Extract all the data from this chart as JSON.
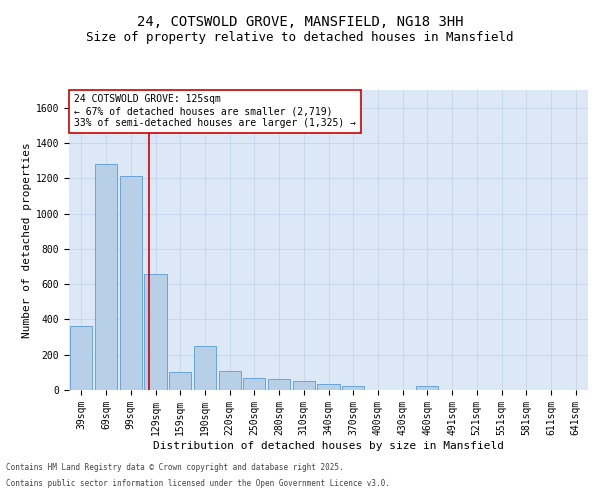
{
  "title": "24, COTSWOLD GROVE, MANSFIELD, NG18 3HH",
  "subtitle": "Size of property relative to detached houses in Mansfield",
  "xlabel": "Distribution of detached houses by size in Mansfield",
  "ylabel": "Number of detached properties",
  "footer_line1": "Contains HM Land Registry data © Crown copyright and database right 2025.",
  "footer_line2": "Contains public sector information licensed under the Open Government Licence v3.0.",
  "categories": [
    "39sqm",
    "69sqm",
    "99sqm",
    "129sqm",
    "159sqm",
    "190sqm",
    "220sqm",
    "250sqm",
    "280sqm",
    "310sqm",
    "340sqm",
    "370sqm",
    "400sqm",
    "430sqm",
    "460sqm",
    "491sqm",
    "521sqm",
    "551sqm",
    "581sqm",
    "611sqm",
    "641sqm"
  ],
  "values": [
    360,
    1280,
    1210,
    660,
    100,
    250,
    110,
    70,
    60,
    50,
    35,
    20,
    0,
    0,
    20,
    0,
    0,
    0,
    0,
    0,
    0
  ],
  "bar_color": "#b8cfe8",
  "bar_edge_color": "#5b9bd5",
  "vline_color": "#cc0000",
  "vline_pos": 2.72,
  "annotation_text": "24 COTSWOLD GROVE: 125sqm\n← 67% of detached houses are smaller (2,719)\n33% of semi-detached houses are larger (1,325) →",
  "annotation_box_color": "white",
  "annotation_box_edge": "#cc0000",
  "ylim": [
    0,
    1700
  ],
  "yticks": [
    0,
    200,
    400,
    600,
    800,
    1000,
    1200,
    1400,
    1600
  ],
  "grid_color": "#c8d8ec",
  "bg_color": "#dce8f5",
  "title_fontsize": 10,
  "subtitle_fontsize": 9,
  "axis_label_fontsize": 8,
  "tick_fontsize": 7,
  "annot_fontsize": 7,
  "footer_fontsize": 5.5
}
